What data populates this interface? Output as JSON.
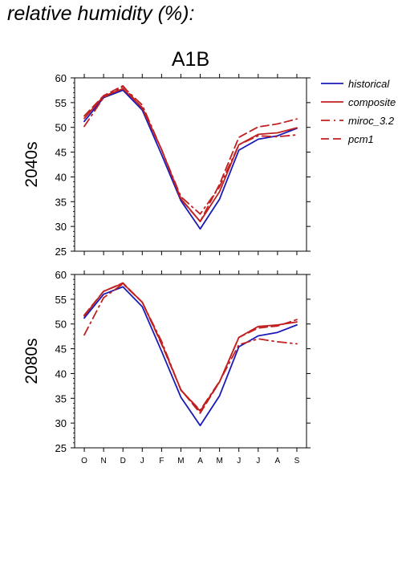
{
  "title": "relative humidity (%):",
  "chart_data": [
    {
      "type": "line",
      "title": "A1B",
      "row_label": "2040s",
      "categories": [
        "O",
        "N",
        "D",
        "J",
        "F",
        "M",
        "A",
        "M",
        "J",
        "J",
        "A",
        "S"
      ],
      "ylim": [
        25,
        60
      ],
      "yticks": [
        25,
        30,
        35,
        40,
        45,
        50,
        55,
        60
      ],
      "series": [
        {
          "name": "historical",
          "color": "#1a1ab8",
          "dash": "solid",
          "values": [
            51.2,
            56.0,
            57.5,
            53.5,
            44.5,
            35.2,
            29.5,
            35.5,
            45.4,
            47.6,
            48.3,
            49.8
          ]
        },
        {
          "name": "composite",
          "color": "#c02020",
          "dash": "solid",
          "values": [
            51.8,
            56.3,
            57.8,
            54.0,
            45.5,
            35.6,
            31.0,
            37.0,
            46.5,
            48.6,
            48.9,
            49.9
          ]
        },
        {
          "name": "miroc_3.2",
          "color": "#c02020",
          "dash": "dashdot",
          "values": [
            50.2,
            56.0,
            58.2,
            54.5,
            45.5,
            36.0,
            32.5,
            38.0,
            46.5,
            48.3,
            48.1,
            48.5
          ]
        },
        {
          "name": "pcm1",
          "color": "#c02020",
          "dash": "dash",
          "values": [
            52.3,
            56.4,
            58.4,
            53.8,
            45.5,
            35.5,
            31.0,
            38.5,
            48.0,
            50.1,
            50.7,
            51.7
          ]
        }
      ]
    },
    {
      "type": "line",
      "title": "",
      "row_label": "2080s",
      "categories": [
        "O",
        "N",
        "D",
        "J",
        "F",
        "M",
        "A",
        "M",
        "J",
        "J",
        "A",
        "S"
      ],
      "ylim": [
        25,
        60
      ],
      "yticks": [
        25,
        30,
        35,
        40,
        45,
        50,
        55,
        60
      ],
      "series": [
        {
          "name": "historical",
          "color": "#1a1ab8",
          "dash": "solid",
          "values": [
            51.2,
            56.0,
            57.5,
            53.5,
            44.5,
            35.2,
            29.5,
            35.5,
            45.4,
            47.6,
            48.3,
            49.8
          ]
        },
        {
          "name": "composite",
          "color": "#c02020",
          "dash": "solid",
          "values": [
            51.6,
            56.6,
            58.2,
            54.4,
            46.1,
            36.7,
            32.4,
            38.3,
            47.3,
            49.5,
            49.8,
            50.4
          ]
        },
        {
          "name": "miroc_3.2",
          "color": "#c02020",
          "dash": "dashdot",
          "values": [
            47.8,
            55.3,
            58.1,
            54.4,
            46.5,
            36.6,
            32.6,
            38.4,
            45.8,
            47.0,
            46.4,
            46.0
          ]
        },
        {
          "name": "pcm1",
          "color": "#c02020",
          "dash": "dash",
          "values": [
            51.8,
            56.6,
            58.3,
            54.4,
            45.9,
            36.7,
            32.0,
            38.3,
            47.3,
            49.2,
            49.6,
            50.9
          ]
        }
      ]
    }
  ],
  "legend": {
    "items": [
      {
        "label": "historical",
        "color": "#1a1ab8",
        "dash": "solid"
      },
      {
        "label": "composite",
        "color": "#c02020",
        "dash": "solid"
      },
      {
        "label": "miroc_3.2",
        "color": "#c02020",
        "dash": "dashdot"
      },
      {
        "label": "pcm1",
        "color": "#c02020",
        "dash": "dash"
      }
    ]
  }
}
